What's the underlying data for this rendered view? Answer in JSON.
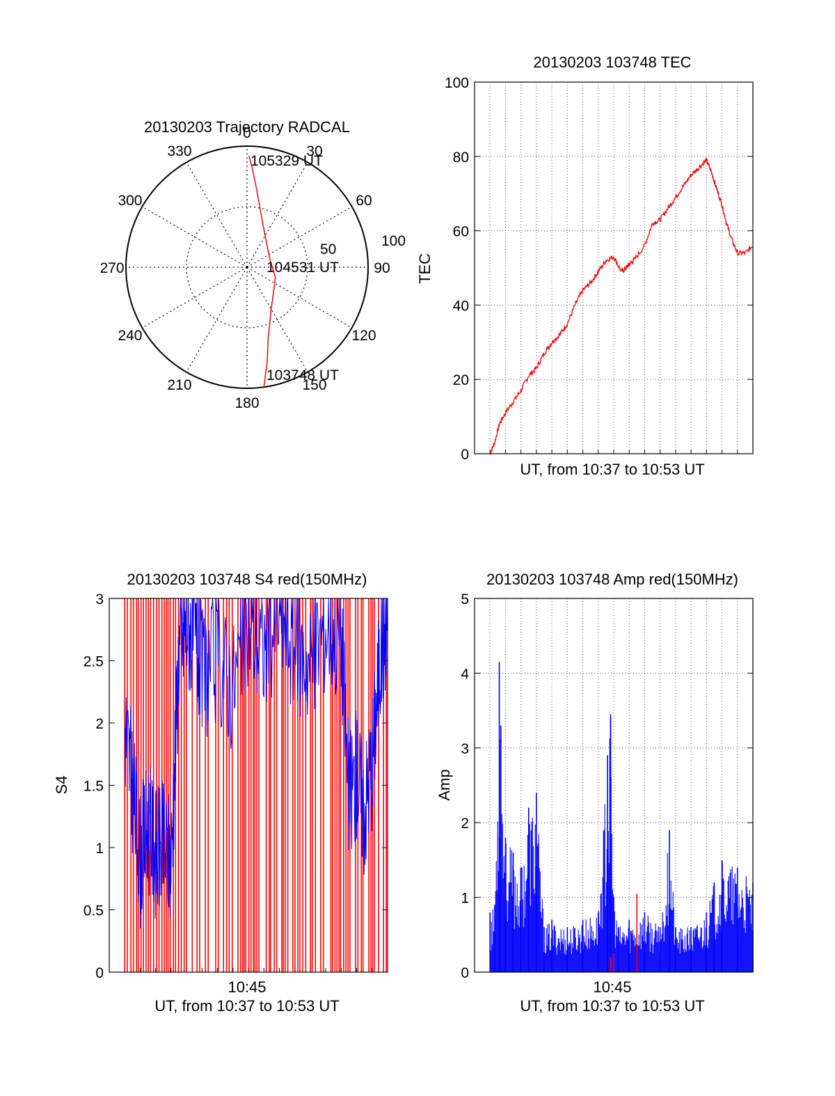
{
  "chart_data": [
    {
      "type": "polar-trajectory",
      "title": "20130203 Trajectory RADCAL",
      "azimuth_labels": [
        "0",
        "30",
        "60",
        "90",
        "120",
        "150",
        "180",
        "210",
        "240",
        "270",
        "300",
        "330"
      ],
      "ring_labels": [
        "50",
        "100"
      ],
      "elevation_rings_max": 100,
      "annotations": {
        "end_time": "105329 UT",
        "mid_time": "104531 UT",
        "start_time": "103748 UT"
      },
      "trajectory": {
        "color": "#ff0000",
        "points": [
          {
            "az": 172,
            "r": 100
          },
          {
            "az": 168,
            "r": 80
          },
          {
            "az": 163,
            "r": 60
          },
          {
            "az": 150,
            "r": 40
          },
          {
            "az": 110,
            "r": 25
          },
          {
            "az": 70,
            "r": 20
          },
          {
            "az": 30,
            "r": 30
          },
          {
            "az": 15,
            "r": 45
          },
          {
            "az": 7,
            "r": 65
          },
          {
            "az": 3,
            "r": 82
          },
          {
            "az": 1,
            "r": 92
          }
        ]
      }
    },
    {
      "type": "line",
      "title": "20130203 103748 TEC",
      "xlabel": "UT, from 10:37 to 10:53 UT",
      "ylabel": "TEC",
      "ylim": [
        0,
        100
      ],
      "yticks": [
        "0",
        "20",
        "40",
        "60",
        "80",
        "100"
      ],
      "xlim_minutes": [
        36.0,
        54.0
      ],
      "grid": true,
      "series": [
        {
          "color": "#ff0000",
          "x_minutes": [
            37.0,
            37.3,
            37.6,
            38.0,
            38.5,
            39.0,
            39.5,
            40.0,
            40.5,
            41.0,
            41.5,
            42.0,
            42.5,
            43.0,
            43.5,
            44.0,
            44.5,
            45.0,
            45.5,
            45.8,
            46.0,
            46.3,
            47.0,
            47.5,
            48.0,
            48.5,
            49.0,
            49.5,
            50.0,
            50.5,
            51.0,
            51.3,
            51.6,
            52.0,
            52.3,
            52.6,
            53.0,
            53.5,
            54.0
          ],
          "values": [
            0,
            3,
            8,
            11,
            14,
            17,
            21,
            23,
            27,
            30,
            32,
            35,
            40,
            44,
            46,
            49,
            52,
            53,
            49,
            50,
            51,
            52,
            56,
            62,
            63,
            66,
            69,
            72,
            75,
            77,
            79,
            76,
            72,
            67,
            62,
            58,
            54,
            54,
            56
          ]
        }
      ]
    },
    {
      "type": "line",
      "title": "20130203 103748 S4 red(150MHz)",
      "xlabel": "UT, from 10:37 to 10:53 UT",
      "ylabel": "S4",
      "ylim": [
        0,
        3
      ],
      "yticks": [
        "0",
        "0.5",
        "1",
        "1.5",
        "2",
        "2.5",
        "3"
      ],
      "xtick_label": "10:45",
      "xlim_minutes": [
        36.0,
        54.0
      ],
      "grid": false,
      "series": [
        {
          "color": "#0000ff",
          "x_minutes": [
            37.0,
            37.5,
            38.0,
            38.5,
            39.0,
            39.5,
            40.0,
            40.5,
            41.0,
            41.5,
            42.0,
            43.0,
            44.0,
            45.0,
            46.0,
            47.0,
            48.0,
            49.0,
            50.0,
            51.0,
            51.5,
            52.0,
            52.5,
            53.0,
            53.5,
            54.0
          ],
          "values": [
            2.0,
            1.5,
            0.9,
            1.2,
            0.95,
            1.0,
            0.9,
            2.6,
            2.8,
            2.7,
            2.4,
            2.5,
            2.3,
            2.8,
            2.6,
            2.9,
            2.6,
            2.5,
            2.8,
            2.7,
            1.4,
            1.6,
            1.3,
            1.7,
            2.5,
            2.9
          ]
        }
      ],
      "red_fill": "dense vertical red lines spanning 0 to 3 across the time window"
    },
    {
      "type": "line",
      "title": "20130203 103748 Amp red(150MHz)",
      "xlabel": "UT, from 10:37 to 10:53 UT",
      "ylabel": "Amp",
      "ylim": [
        0,
        5
      ],
      "yticks": [
        "0",
        "1",
        "2",
        "3",
        "4",
        "5"
      ],
      "xtick_label": "10:45",
      "xlim_minutes": [
        36.0,
        54.0
      ],
      "grid": true,
      "series": [
        {
          "color": "#0000ff",
          "x_minutes": [
            37.0,
            37.3,
            37.6,
            37.7,
            38.0,
            38.5,
            39.0,
            39.5,
            40.0,
            40.5,
            41.0,
            42.0,
            43.0,
            44.0,
            44.6,
            44.8,
            45.0,
            45.3,
            46.0,
            47.0,
            48.0,
            48.6,
            49.0,
            50.0,
            51.0,
            51.5,
            52.0,
            53.0,
            54.0
          ],
          "values": [
            0.8,
            0.9,
            4.15,
            3.3,
            1.8,
            1.6,
            1.4,
            2.2,
            2.4,
            0.6,
            0.7,
            0.6,
            0.7,
            0.8,
            2.9,
            3.45,
            1.0,
            0.6,
            0.7,
            0.8,
            0.6,
            1.9,
            0.6,
            0.6,
            0.8,
            1.2,
            1.5,
            1.4,
            1.2
          ]
        },
        {
          "color": "#ff0000",
          "x_minutes": [
            44.8,
            45.0,
            46.5
          ],
          "values": [
            0.2,
            0.25,
            1.05
          ]
        }
      ]
    }
  ]
}
